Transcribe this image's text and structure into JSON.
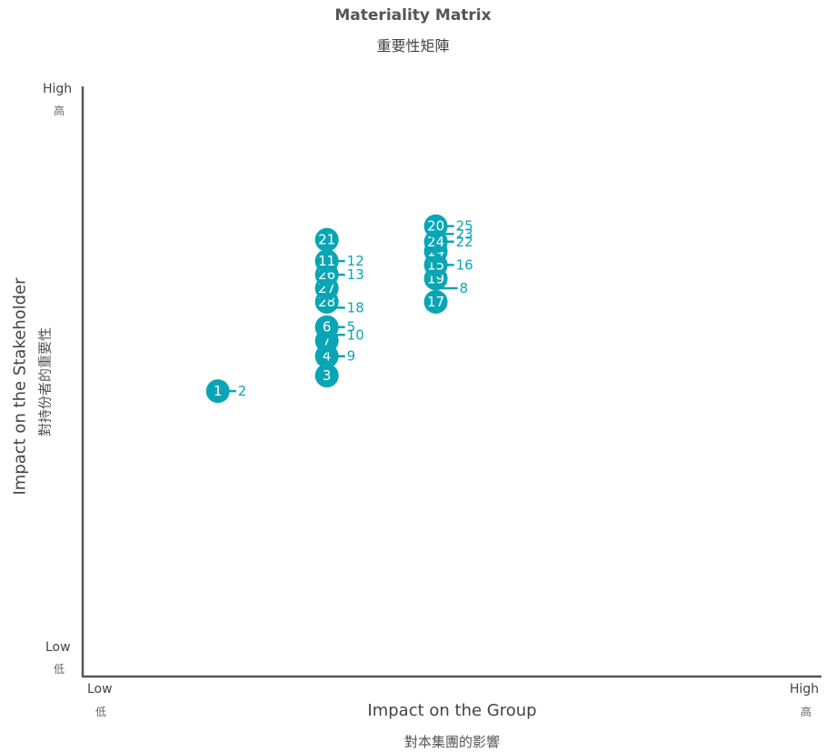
{
  "chart_data": {
    "type": "scatter",
    "title": "Materiality Matrix",
    "subtitle": "重要性矩陣",
    "xlabel": "Impact on the Group",
    "xlabel_secondary": "對本集團的影響",
    "ylabel": "Impact on the Stakeholder",
    "ylabel_secondary": "對持份者的重要性",
    "xlim": [
      0,
      100
    ],
    "ylim": [
      0,
      100
    ],
    "x_ticks": {
      "low": "Low",
      "low_secondary": "低",
      "high": "High",
      "high_secondary": "高"
    },
    "y_ticks": {
      "low": "Low",
      "low_secondary": "低",
      "high": "High",
      "high_secondary": "高"
    },
    "grid": false,
    "legend": "none",
    "marker_color": "#0aa5b5",
    "axis_color": "#555555",
    "points": [
      {
        "label": "1",
        "x": 25,
        "y": 29.5,
        "callout": false
      },
      {
        "label": "2",
        "x": 25,
        "y": 29.5,
        "callout": true
      },
      {
        "label": "3",
        "x": 50,
        "y": 33.5,
        "callout": false
      },
      {
        "label": "4",
        "x": 50,
        "y": 38.5,
        "callout": false
      },
      {
        "label": "9",
        "x": 50,
        "y": 38.5,
        "callout": true
      },
      {
        "label": "7",
        "x": 50,
        "y": 42.5,
        "callout": false
      },
      {
        "label": "10",
        "x": 50,
        "y": 44,
        "callout": true
      },
      {
        "label": "6",
        "x": 50,
        "y": 46,
        "callout": false
      },
      {
        "label": "5",
        "x": 50,
        "y": 46,
        "callout": true
      },
      {
        "label": "18",
        "x": 50,
        "y": 51,
        "callout": true
      },
      {
        "label": "28",
        "x": 50,
        "y": 52.5,
        "callout": false
      },
      {
        "label": "27",
        "x": 50,
        "y": 56,
        "callout": false
      },
      {
        "label": "26",
        "x": 50,
        "y": 59.5,
        "callout": false
      },
      {
        "label": "13",
        "x": 50,
        "y": 59.5,
        "callout": true
      },
      {
        "label": "11",
        "x": 50,
        "y": 63,
        "callout": false
      },
      {
        "label": "12",
        "x": 50,
        "y": 63,
        "callout": true
      },
      {
        "label": "21",
        "x": 50,
        "y": 68.5,
        "callout": false
      },
      {
        "label": "17",
        "x": 75,
        "y": 52.5,
        "callout": false
      },
      {
        "label": "8",
        "x": 75,
        "y": 56,
        "callout": true
      },
      {
        "label": "19",
        "x": 75,
        "y": 58.5,
        "callout": false
      },
      {
        "label": "15",
        "x": 75,
        "y": 62,
        "callout": false
      },
      {
        "label": "16",
        "x": 75,
        "y": 62,
        "callout": true
      },
      {
        "label": "14",
        "x": 75,
        "y": 65.5,
        "callout": false
      },
      {
        "label": "24",
        "x": 75,
        "y": 68,
        "callout": false
      },
      {
        "label": "22",
        "x": 75,
        "y": 68,
        "callout": true
      },
      {
        "label": "23",
        "x": 75,
        "y": 70,
        "callout": true
      },
      {
        "label": "20",
        "x": 75,
        "y": 72,
        "callout": false
      },
      {
        "label": "25",
        "x": 75,
        "y": 72,
        "callout": true
      }
    ]
  }
}
